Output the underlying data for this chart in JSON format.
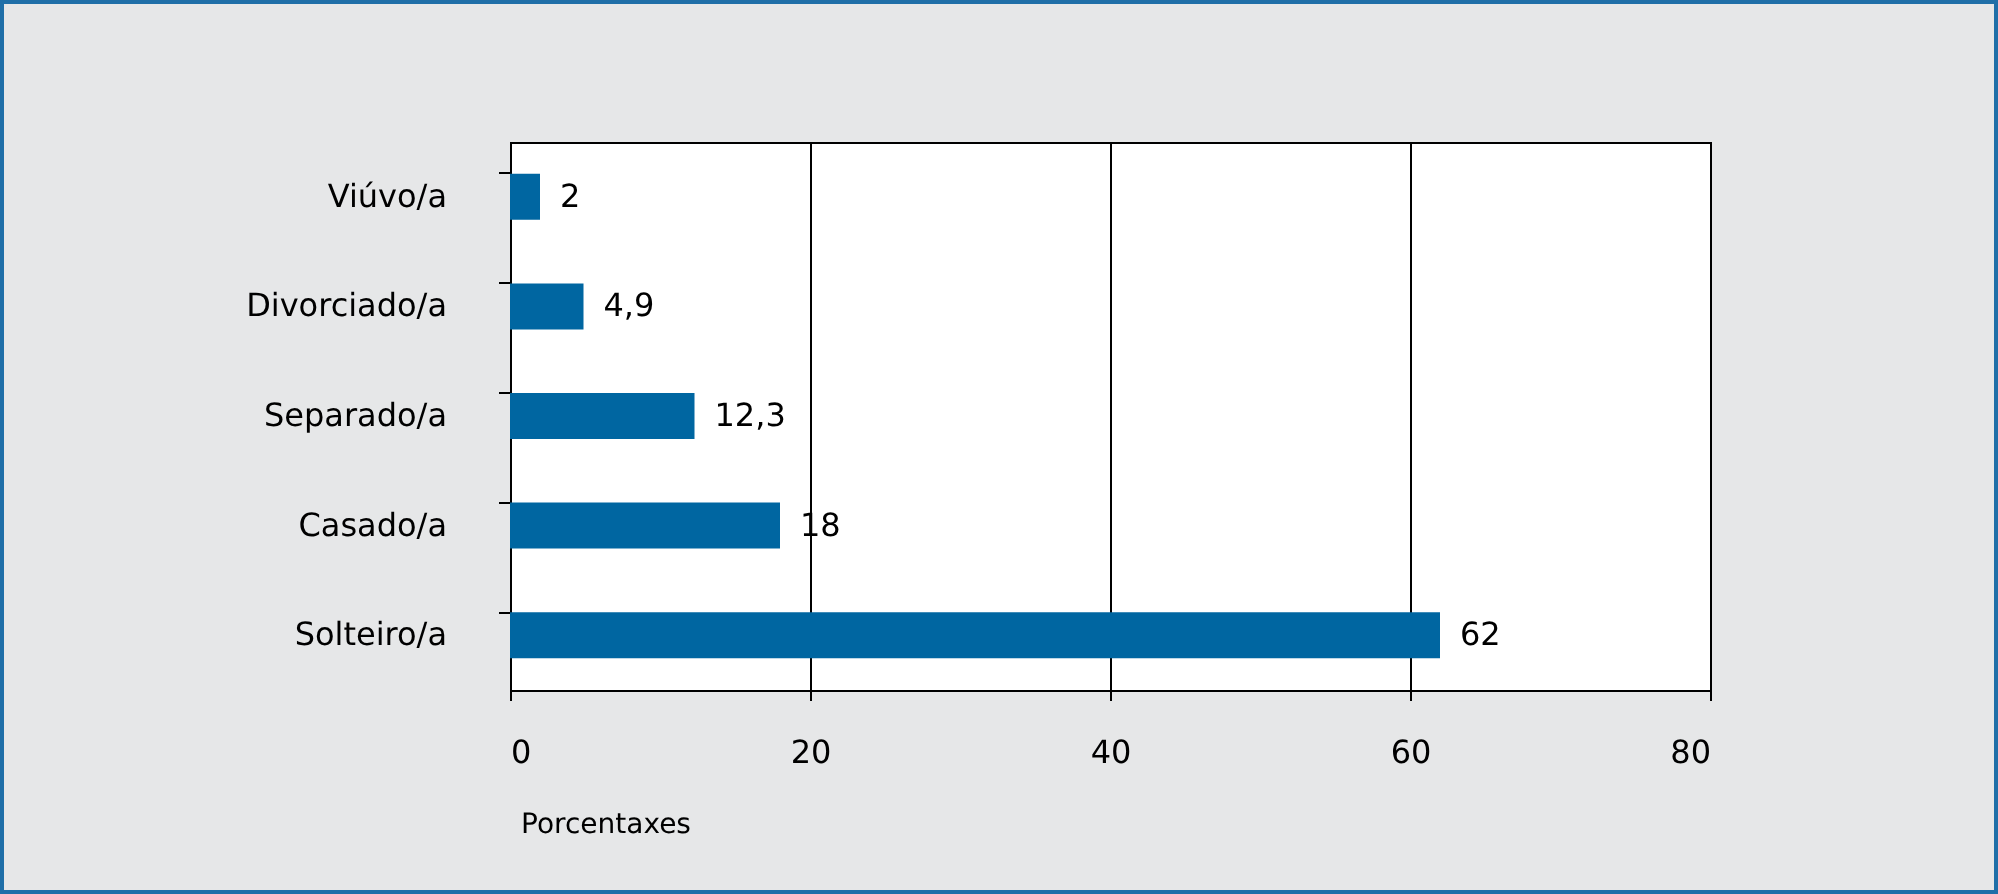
{
  "chart_data": {
    "type": "bar",
    "orientation": "horizontal",
    "xlabel": "Porcentaxes",
    "categories": [
      "Viúvo/a",
      "Divorciado/a",
      "Separado/a",
      "Casado/a",
      "Solteiro/a"
    ],
    "values": [
      2,
      4.9,
      12.3,
      18,
      62
    ],
    "value_labels": [
      "2",
      "4,9",
      "12,3",
      "18",
      "62"
    ],
    "color": "#0066a1",
    "xlim": [
      0,
      80
    ],
    "xticks": [
      0,
      20,
      40,
      60,
      80
    ],
    "grid": "x"
  }
}
